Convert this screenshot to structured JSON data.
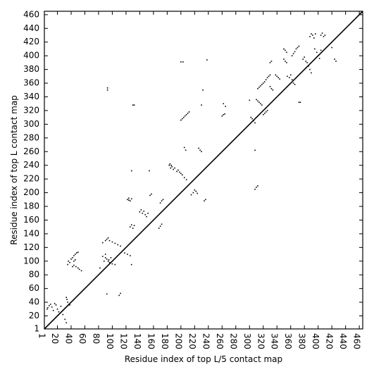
{
  "chart_data": {
    "type": "scatter",
    "title": "",
    "xlabel": "Residue index of top L/5 contact map",
    "ylabel": "Residue index of top L contact map",
    "xlim": [
      1,
      465
    ],
    "ylim": [
      1,
      465
    ],
    "xticks": [
      "1",
      "20",
      "40",
      "60",
      "80",
      "100",
      "120",
      "140",
      "160",
      "180",
      "200",
      "220",
      "240",
      "260",
      "280",
      "300",
      "320",
      "340",
      "360",
      "380",
      "400",
      "420",
      "440",
      "460"
    ],
    "yticks": [
      "1",
      "20",
      "40",
      "60",
      "80",
      "100",
      "120",
      "140",
      "160",
      "180",
      "200",
      "220",
      "240",
      "260",
      "280",
      "300",
      "320",
      "340",
      "360",
      "380",
      "400",
      "420",
      "440",
      "460"
    ],
    "diagonal": {
      "from": [
        1,
        1
      ],
      "to": [
        465,
        465
      ]
    },
    "grid": false,
    "point_color": "#000000",
    "series": [
      {
        "values": [
          [
            5,
            30
          ],
          [
            6,
            32
          ],
          [
            8,
            35
          ],
          [
            10,
            37
          ],
          [
            12,
            33
          ],
          [
            14,
            28
          ],
          [
            16,
            38
          ],
          [
            18,
            36
          ],
          [
            20,
            30
          ],
          [
            22,
            26
          ],
          [
            25,
            34
          ],
          [
            28,
            22
          ],
          [
            31,
            15
          ],
          [
            33,
            10
          ],
          [
            33,
            47
          ],
          [
            34,
            44
          ],
          [
            35,
            40
          ],
          [
            38,
            36
          ],
          [
            35,
            95
          ],
          [
            36,
            100
          ],
          [
            38,
            98
          ],
          [
            40,
            103
          ],
          [
            42,
            105
          ],
          [
            44,
            108
          ],
          [
            46,
            110
          ],
          [
            48,
            112
          ],
          [
            50,
            113
          ],
          [
            44,
            100
          ],
          [
            46,
            102
          ],
          [
            42,
            92
          ],
          [
            44,
            94
          ],
          [
            47,
            92
          ],
          [
            50,
            90
          ],
          [
            52,
            88
          ],
          [
            55,
            86
          ],
          [
            82,
            90
          ],
          [
            88,
            100
          ],
          [
            92,
            103
          ],
          [
            86,
            107
          ],
          [
            90,
            110
          ],
          [
            98,
            105
          ],
          [
            86,
            127
          ],
          [
            90,
            130
          ],
          [
            92,
            132
          ],
          [
            94,
            134
          ],
          [
            96,
            130
          ],
          [
            100,
            128
          ],
          [
            104,
            126
          ],
          [
            108,
            124
          ],
          [
            112,
            122
          ],
          [
            94,
            100
          ],
          [
            96,
            98
          ],
          [
            100,
            96
          ],
          [
            104,
            95
          ],
          [
            90,
            105
          ],
          [
            95,
            102
          ],
          [
            93,
            350
          ],
          [
            93,
            353
          ],
          [
            110,
            50
          ],
          [
            92,
            52
          ],
          [
            112,
            53
          ],
          [
            118,
            112
          ],
          [
            122,
            110
          ],
          [
            126,
            108
          ],
          [
            128,
            95
          ],
          [
            122,
            190
          ],
          [
            124,
            189
          ],
          [
            126,
            188
          ],
          [
            128,
            191
          ],
          [
            124,
            192
          ],
          [
            126,
            150
          ],
          [
            128,
            153
          ],
          [
            130,
            148
          ],
          [
            132,
            152
          ],
          [
            128,
            232
          ],
          [
            130,
            328
          ],
          [
            132,
            328
          ],
          [
            140,
            172
          ],
          [
            142,
            175
          ],
          [
            144,
            170
          ],
          [
            146,
            173
          ],
          [
            148,
            168
          ],
          [
            150,
            165
          ],
          [
            152,
            170
          ],
          [
            155,
            196
          ],
          [
            157,
            198
          ],
          [
            154,
            232
          ],
          [
            168,
            148
          ],
          [
            170,
            151
          ],
          [
            172,
            154
          ],
          [
            170,
            185
          ],
          [
            172,
            188
          ],
          [
            174,
            190
          ],
          [
            183,
            240
          ],
          [
            185,
            236
          ],
          [
            187,
            238
          ],
          [
            189,
            234
          ],
          [
            191,
            236
          ],
          [
            184,
            242
          ],
          [
            186,
            240
          ],
          [
            194,
            231
          ],
          [
            196,
            233
          ],
          [
            198,
            230
          ],
          [
            200,
            228
          ],
          [
            202,
            226
          ],
          [
            205,
            222
          ],
          [
            208,
            219
          ],
          [
            200,
            306
          ],
          [
            202,
            308
          ],
          [
            204,
            310
          ],
          [
            206,
            312
          ],
          [
            208,
            314
          ],
          [
            210,
            316
          ],
          [
            212,
            318
          ],
          [
            200,
            391
          ],
          [
            203,
            391
          ],
          [
            205,
            266
          ],
          [
            207,
            262
          ],
          [
            215,
            197
          ],
          [
            218,
            200
          ],
          [
            220,
            204
          ],
          [
            222,
            202
          ],
          [
            224,
            199
          ],
          [
            226,
            265
          ],
          [
            228,
            262
          ],
          [
            230,
            260
          ],
          [
            230,
            328
          ],
          [
            232,
            350
          ],
          [
            234,
            188
          ],
          [
            236,
            190
          ],
          [
            238,
            394
          ],
          [
            260,
            312
          ],
          [
            262,
            314
          ],
          [
            264,
            315
          ],
          [
            262,
            330
          ],
          [
            265,
            326
          ],
          [
            300,
            335
          ],
          [
            302,
            310
          ],
          [
            304,
            308
          ],
          [
            306,
            305
          ],
          [
            308,
            302
          ],
          [
            310,
            336
          ],
          [
            312,
            334
          ],
          [
            314,
            332
          ],
          [
            316,
            330
          ],
          [
            318,
            328
          ],
          [
            308,
            262
          ],
          [
            308,
            205
          ],
          [
            310,
            208
          ],
          [
            312,
            210
          ],
          [
            312,
            352
          ],
          [
            314,
            354
          ],
          [
            316,
            356
          ],
          [
            318,
            358
          ],
          [
            320,
            360
          ],
          [
            322,
            362
          ],
          [
            324,
            365
          ],
          [
            326,
            368
          ],
          [
            328,
            370
          ],
          [
            330,
            372
          ],
          [
            320,
            314
          ],
          [
            322,
            316
          ],
          [
            324,
            318
          ],
          [
            326,
            320
          ],
          [
            330,
            355
          ],
          [
            332,
            352
          ],
          [
            334,
            350
          ],
          [
            330,
            390
          ],
          [
            332,
            392
          ],
          [
            338,
            372
          ],
          [
            340,
            370
          ],
          [
            342,
            368
          ],
          [
            344,
            366
          ],
          [
            350,
            395
          ],
          [
            352,
            392
          ],
          [
            354,
            390
          ],
          [
            350,
            410
          ],
          [
            352,
            408
          ],
          [
            354,
            405
          ],
          [
            355,
            370
          ],
          [
            358,
            368
          ],
          [
            360,
            372
          ],
          [
            362,
            365
          ],
          [
            364,
            360
          ],
          [
            366,
            358
          ],
          [
            362,
            400
          ],
          [
            364,
            403
          ],
          [
            366,
            406
          ],
          [
            368,
            410
          ],
          [
            370,
            412
          ],
          [
            372,
            414
          ],
          [
            372,
            332
          ],
          [
            374,
            332
          ],
          [
            378,
            395
          ],
          [
            380,
            398
          ],
          [
            382,
            392
          ],
          [
            384,
            390
          ],
          [
            386,
            385
          ],
          [
            388,
            380
          ],
          [
            390,
            375
          ],
          [
            388,
            428
          ],
          [
            390,
            432
          ],
          [
            392,
            430
          ],
          [
            394,
            426
          ],
          [
            396,
            432
          ],
          [
            395,
            410
          ],
          [
            398,
            405
          ],
          [
            400,
            400
          ],
          [
            402,
            396
          ],
          [
            404,
            408
          ],
          [
            404,
            430
          ],
          [
            406,
            433
          ],
          [
            408,
            428
          ],
          [
            410,
            430
          ],
          [
            420,
            412
          ],
          [
            424,
            395
          ],
          [
            426,
            392
          ]
        ]
      }
    ]
  }
}
